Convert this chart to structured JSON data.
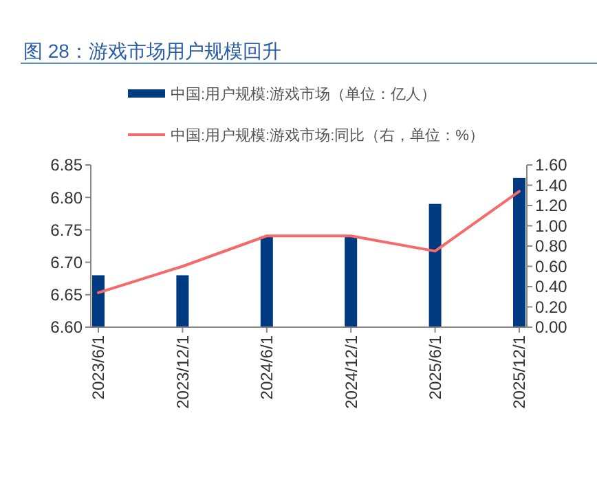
{
  "chart_data": {
    "type": "bar",
    "title": "图 28：游戏市场用户规模回升",
    "categories": [
      "2023/6/1",
      "2023/12/1",
      "2024/6/1",
      "2024/12/1",
      "2025/6/1",
      "2025/12/1"
    ],
    "series": [
      {
        "name": "中国:用户规模:游戏市场（单位：亿人）",
        "color": "#003a80",
        "values": [
          6.68,
          6.68,
          6.74,
          6.74,
          6.79,
          6.83
        ]
      },
      {
        "name": "中国:用户规模:游戏市场:同比（右，单位：%）",
        "color": "#f56a6a",
        "type": "line",
        "axis": "y2",
        "values": [
          0.34,
          0.6,
          0.9,
          0.9,
          0.75,
          1.34
        ]
      }
    ],
    "ylim": [
      6.6,
      6.85
    ],
    "yticks": [
      {
        "value": 6.6,
        "label": "6.60"
      },
      {
        "value": 6.65,
        "label": "6.65"
      },
      {
        "value": 6.7,
        "label": "6.70"
      },
      {
        "value": 6.75,
        "label": "6.75"
      },
      {
        "value": 6.8,
        "label": "6.80"
      },
      {
        "value": 6.85,
        "label": "6.85"
      }
    ],
    "y2lim": [
      0,
      1.6
    ],
    "y2ticks": [
      {
        "value": 0,
        "label": "0.00"
      },
      {
        "value": 0.2,
        "label": "0.20"
      },
      {
        "value": 0.4,
        "label": "0.40"
      },
      {
        "value": 0.6,
        "label": "0.60"
      },
      {
        "value": 0.8,
        "label": "0.80"
      },
      {
        "value": 1,
        "label": "1.00"
      },
      {
        "value": 1.2,
        "label": "1.20"
      },
      {
        "value": 1.4,
        "label": "1.40"
      },
      {
        "value": 1.6,
        "label": "1.60"
      }
    ],
    "legend": "top",
    "grid": false
  }
}
